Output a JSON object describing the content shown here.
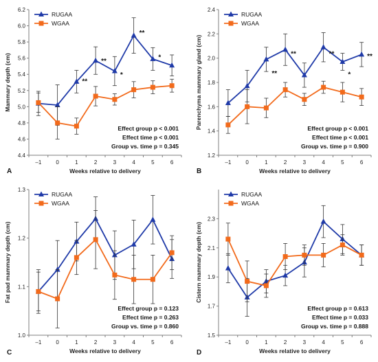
{
  "colors": {
    "RUGAA": "#1f3aa8",
    "WGAA": "#f26a1b",
    "axis": "#7f7f7f",
    "errorbar": "#333333"
  },
  "chart_data": [
    {
      "panel": "A",
      "type": "line",
      "x": [
        -1,
        0,
        1,
        2,
        3,
        4,
        5,
        6
      ],
      "x_tick_labels": [
        "–1",
        "0",
        "1",
        "2",
        "3",
        "4",
        "5",
        "6"
      ],
      "xlabel": "Weeks relative to delivery",
      "ylabel": "Mammary depth (cm)",
      "ylim": [
        4.4,
        6.2
      ],
      "y_ticks": [
        4.4,
        4.6,
        4.8,
        5.0,
        5.2,
        5.4,
        5.6,
        5.8,
        6.0,
        6.2
      ],
      "y_tick_labels": [
        "4.4",
        "4.6",
        "4.8",
        "5.0",
        "5.2",
        "5.4",
        "5.6",
        "5.8",
        "6.0",
        "6.2"
      ],
      "grid": false,
      "legend_position": "top-left",
      "series": [
        {
          "name": "RUGAA",
          "marker": "triangle",
          "color": "#1f3aa8",
          "values": [
            5.04,
            5.02,
            5.31,
            5.57,
            5.44,
            5.88,
            5.59,
            5.51
          ],
          "errors": [
            0.15,
            0.25,
            0.14,
            0.17,
            0.18,
            0.22,
            0.14,
            0.13
          ]
        },
        {
          "name": "WGAA",
          "marker": "square",
          "color": "#f26a1b",
          "values": [
            5.05,
            4.8,
            4.76,
            5.13,
            5.09,
            5.21,
            5.24,
            5.26
          ],
          "errors": [
            0.12,
            0.2,
            0.1,
            0.12,
            0.07,
            0.1,
            0.08,
            0.08
          ]
        }
      ],
      "annotations": [
        {
          "x": 1,
          "y": 5.32,
          "text": "**"
        },
        {
          "x": 2,
          "y": 5.57,
          "text": "**"
        },
        {
          "x": 3,
          "y": 5.4,
          "text": "*"
        },
        {
          "x": 4,
          "y": 5.92,
          "text": "**"
        },
        {
          "x": 5,
          "y": 5.62,
          "text": "*"
        }
      ],
      "stats": [
        "Effect group p < 0.001",
        "Effect time p < 0.001",
        "Group vs. time p = 0.345"
      ]
    },
    {
      "panel": "B",
      "type": "line",
      "x": [
        -1,
        0,
        1,
        2,
        3,
        4,
        5,
        6
      ],
      "x_tick_labels": [
        "–1",
        "0",
        "1",
        "2",
        "3",
        "4",
        "5",
        "6"
      ],
      "xlabel": "Weeks relative to delivery",
      "ylabel": "Parenchyma mammary gland (cm)",
      "ylim": [
        1.2,
        2.4
      ],
      "y_ticks": [
        1.2,
        1.4,
        1.6,
        1.8,
        2.0,
        2.2,
        2.4
      ],
      "y_tick_labels": [
        "1.2",
        "1.4",
        "1.6",
        "1.8",
        "2.0",
        "2.2",
        "2.4"
      ],
      "grid": false,
      "legend_position": "top-left",
      "series": [
        {
          "name": "RUGAA",
          "marker": "triangle",
          "color": "#1f3aa8",
          "values": [
            1.63,
            1.77,
            1.99,
            2.07,
            1.86,
            2.09,
            1.97,
            2.03
          ],
          "errors": [
            0.11,
            0.13,
            0.1,
            0.13,
            0.1,
            0.12,
            0.07,
            0.1
          ]
        },
        {
          "name": "WGAA",
          "marker": "square",
          "color": "#f26a1b",
          "values": [
            1.45,
            1.6,
            1.59,
            1.74,
            1.66,
            1.76,
            1.72,
            1.68
          ],
          "errors": [
            0.07,
            0.14,
            0.08,
            0.06,
            0.05,
            0.05,
            0.08,
            0.07
          ]
        }
      ],
      "annotations": [
        {
          "x": 1,
          "y": 1.88,
          "text": "**"
        },
        {
          "x": 2,
          "y": 2.04,
          "text": "**"
        },
        {
          "x": 4,
          "y": 2.04,
          "text": "**"
        },
        {
          "x": 5,
          "y": 1.87,
          "text": "*"
        },
        {
          "x": 6,
          "y": 2.02,
          "text": "**"
        }
      ],
      "stats": [
        "Effect group p < 0.001",
        "Effect time p < 0.001",
        "Group vs. time p = 0.900"
      ]
    },
    {
      "panel": "C",
      "type": "line",
      "x": [
        -1,
        0,
        1,
        2,
        3,
        4,
        5,
        6
      ],
      "x_tick_labels": [
        "–1",
        "0",
        "1",
        "2",
        "3",
        "4",
        "5",
        "6"
      ],
      "xlabel": "Weeks relative to delivery",
      "ylabel": "Fat pad mammary depth (cm)",
      "ylim": [
        1.0,
        1.3
      ],
      "y_ticks": [
        1.0,
        1.1,
        1.2,
        1.3
      ],
      "y_tick_labels": [
        "1.0",
        "1.1",
        "1.2",
        "1.3"
      ],
      "grid": false,
      "legend_position": "top-left",
      "series": [
        {
          "name": "RUGAA",
          "marker": "triangle",
          "color": "#1f3aa8",
          "values": [
            1.09,
            1.135,
            1.193,
            1.24,
            1.165,
            1.187,
            1.238,
            1.157
          ],
          "errors": [
            0.04,
            0.06,
            0.04,
            0.045,
            0.05,
            0.05,
            0.05,
            0.04
          ]
        },
        {
          "name": "WGAA",
          "marker": "square",
          "color": "#f26a1b",
          "values": [
            1.09,
            1.075,
            1.16,
            1.197,
            1.124,
            1.115,
            1.115,
            1.17
          ],
          "errors": [
            0.045,
            0.06,
            0.035,
            0.06,
            0.05,
            0.05,
            0.05,
            0.035
          ]
        }
      ],
      "annotations": [],
      "stats": [
        "Effect group p = 0.123",
        "Effect time p = 0.263",
        "Group vs. time p = 0.860"
      ]
    },
    {
      "panel": "D",
      "type": "line",
      "x": [
        -1,
        0,
        1,
        2,
        3,
        4,
        5,
        6
      ],
      "x_tick_labels": [
        "–1",
        "0",
        "1",
        "2",
        "3",
        "4",
        "5",
        "6"
      ],
      "xlabel": "Weeks relative to delivery",
      "ylabel": "Cistern mammary depth (cm)",
      "ylim": [
        1.5,
        2.5
      ],
      "y_ticks": [
        1.5,
        1.7,
        1.9,
        2.1,
        2.3
      ],
      "y_tick_labels": [
        "1.5",
        "1.7",
        "1.9",
        "2.1",
        "2.3"
      ],
      "grid": false,
      "legend_position": "top-left",
      "series": [
        {
          "name": "RUGAA",
          "marker": "triangle",
          "color": "#1f3aa8",
          "values": [
            1.96,
            1.76,
            1.87,
            1.91,
            2.0,
            2.28,
            2.16,
            2.05
          ],
          "errors": [
            0.1,
            0.13,
            0.08,
            0.07,
            0.1,
            0.11,
            0.1,
            0.07
          ]
        },
        {
          "name": "WGAA",
          "marker": "square",
          "color": "#f26a1b",
          "values": [
            2.16,
            1.87,
            1.84,
            2.04,
            2.05,
            2.05,
            2.12,
            2.05
          ],
          "errors": [
            0.11,
            0.14,
            0.08,
            0.09,
            0.07,
            0.08,
            0.07,
            0.07
          ]
        }
      ],
      "annotations": [],
      "stats": [
        "Effect group p = 0.613",
        "Effect time p = 0.033",
        "Group vs. time p = 0.888"
      ]
    }
  ]
}
